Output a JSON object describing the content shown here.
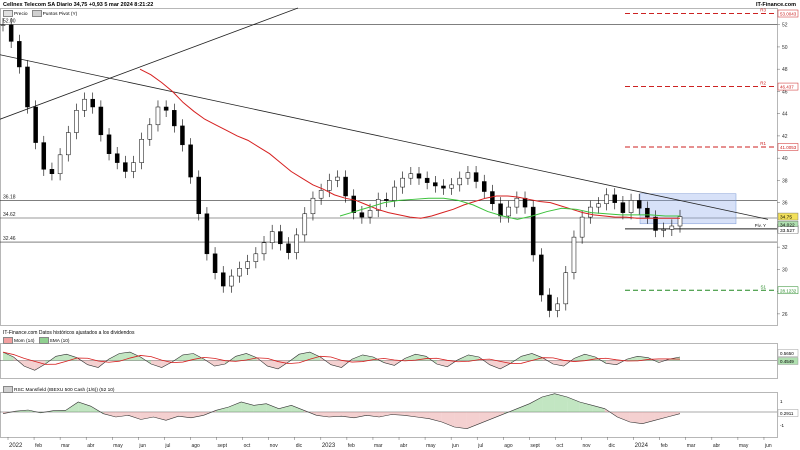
{
  "header": {
    "title": "Cellnex Telecom SA Diario 34,75 +0,93 5 mar 2024 8:21:22",
    "brand": "IT-Finance.com"
  },
  "legend_main": [
    {
      "label": "Precio",
      "color": "#e0e0e0"
    },
    {
      "label": "Puntos Pivot (Y)",
      "color": "#d0d0d0"
    }
  ],
  "panel2": {
    "caption": "IT-Finance.com Datos históricos ajustados a los dividendos",
    "legend": [
      {
        "label": "Mom (14)",
        "color": "#f2a0a0"
      },
      {
        "label": "SMA (10)",
        "color": "#90d090"
      }
    ]
  },
  "panel3": {
    "legend": [
      {
        "label": "RSC Mansfield (IBEXU 500 Cash (1/6)) (52 10)",
        "color": "#d0d0d0"
      }
    ]
  },
  "chart_data": [
    {
      "type": "candlestick",
      "x_labels": [
        "2022",
        "feb",
        "mar",
        "abr",
        "may",
        "jun",
        "jul",
        "ago",
        "sept",
        "oct",
        "nov",
        "dic",
        "2023",
        "feb",
        "mar",
        "abr",
        "may",
        "jun",
        "jul",
        "ago",
        "sept",
        "oct",
        "nov",
        "dic",
        "2024",
        "feb",
        "mar",
        "abr",
        "may",
        "jun"
      ],
      "y_ticks": [
        26,
        28,
        30,
        32,
        34,
        36,
        38,
        40,
        42,
        44,
        46,
        48,
        50,
        52
      ],
      "ylim": [
        25,
        53.5
      ],
      "close_series": [
        52.0,
        50.5,
        48.2,
        44.6,
        41.4,
        39.0,
        38.6,
        40.3,
        42.3,
        44.3,
        45.3,
        44.6,
        42.1,
        40.4,
        39.6,
        38.8,
        39.6,
        41.7,
        43.0,
        44.6,
        44.3,
        42.9,
        41.2,
        38.3,
        35.0,
        31.4,
        29.7,
        28.5,
        29.4,
        30.1,
        30.7,
        31.4,
        32.4,
        33.4,
        32.3,
        31.5,
        33.1,
        35.0,
        36.4,
        37.1,
        38.0,
        38.3,
        36.6,
        35.1,
        34.7,
        35.3,
        36.3,
        36.2,
        37.4,
        38.2,
        38.6,
        38.2,
        37.8,
        37.5,
        37.3,
        37.6,
        38.2,
        38.7,
        37.9,
        37.0,
        35.9,
        34.8,
        35.6,
        36.4,
        35.6,
        31.3,
        27.7,
        26.3,
        26.9,
        29.7,
        32.9,
        34.7,
        35.6,
        35.9,
        36.7,
        36.0,
        35.1,
        36.2,
        35.5,
        34.7,
        33.5,
        33.6,
        33.9,
        34.75
      ],
      "moving_average_red": [
        48,
        47.5,
        46.8,
        46,
        45,
        44.2,
        43.5,
        43,
        42.5,
        42,
        41.6,
        41,
        40.4,
        39.6,
        38.8,
        38.2,
        37.6,
        37.2,
        36.7,
        36.4,
        36.2,
        35.8,
        35.4,
        35.1,
        34.9,
        34.7,
        34.6,
        34.8,
        35.1,
        35.4,
        35.8,
        36.1,
        36.4,
        36.6,
        36.6,
        36.5,
        36.3,
        36.1,
        36.0,
        35.7,
        35.4,
        35.1,
        34.9,
        34.8,
        34.7,
        34.7,
        34.6,
        34.6,
        34.6,
        34.6,
        34.6
      ],
      "moving_average_green": [
        34.8,
        35.2,
        35.6,
        36.0,
        36.2,
        36.3,
        36.4,
        36.4,
        36.2,
        35.8,
        35.2,
        34.8,
        34.5,
        34.8,
        35.2,
        35.5,
        35.4,
        35.1,
        35.0,
        34.9,
        34.9,
        34.9,
        34.8,
        34.8
      ],
      "levels": [
        {
          "label": "52.00",
          "value": 52.0,
          "style": "solid"
        },
        {
          "label": "36.18",
          "value": 36.18,
          "style": "solid"
        },
        {
          "label": "34.62",
          "value": 34.62,
          "style": "solid"
        },
        {
          "label": "32.46",
          "value": 32.46,
          "style": "solid"
        }
      ],
      "pivots": [
        {
          "label": "R3",
          "value": "53.0043",
          "color": "#cc2222"
        },
        {
          "label": "R2",
          "value": "46.437",
          "color": "#cc2222"
        },
        {
          "label": "R1",
          "value": "41.0053",
          "color": "#cc2222"
        },
        {
          "label": "Piv. Y",
          "value": "33.637",
          "color": "#222222"
        },
        {
          "label": "S1",
          "value": "28.1232",
          "color": "#228822"
        }
      ],
      "price_tags": [
        {
          "value": "34.75",
          "color": "#f2e05a"
        },
        {
          "value": "34.022",
          "color": "#b0e0b0"
        },
        {
          "value": "33.527",
          "color": "#ffffff"
        }
      ]
    },
    {
      "type": "area",
      "name": "Mom (14)",
      "ylim": [
        -0.25,
        0.25
      ],
      "y_tick_labels": [
        "0.5650",
        "0.4549"
      ],
      "values": [
        0.12,
        0.05,
        -0.08,
        -0.14,
        -0.05,
        0.06,
        0.09,
        0.04,
        -0.06,
        -0.1,
        0.02,
        0.1,
        0.12,
        0.05,
        -0.05,
        -0.1,
        -0.02,
        0.08,
        0.1,
        0.02,
        -0.08,
        -0.05,
        0.06,
        0.1,
        0.04,
        -0.08,
        -0.12,
        -0.02,
        0.09,
        0.12,
        0.05,
        -0.06,
        -0.1,
        0.02,
        0.08,
        0.05,
        -0.03,
        -0.07,
        0.03,
        0.09,
        0.06,
        -0.05,
        -0.09,
        0.01,
        0.08,
        0.05,
        -0.06,
        -0.12,
        -0.04,
        0.06,
        0.1,
        0.04,
        -0.05,
        -0.08,
        0.03,
        0.09,
        0.05,
        -0.04,
        -0.06,
        0.02,
        0.06,
        0.04,
        -0.03,
        0.02,
        0.05
      ]
    },
    {
      "type": "area",
      "name": "RSC Mansfield",
      "ylim": [
        -1.5,
        1.2
      ],
      "y_tick_labels": [
        "1",
        "0.2911",
        "-1"
      ],
      "values": [
        -0.1,
        0.05,
        0.12,
        -0.05,
        0.08,
        0.1,
        0.6,
        0.35,
        -0.1,
        -0.3,
        -0.2,
        -0.45,
        -0.3,
        -0.5,
        -0.25,
        -0.35,
        -0.2,
        0.1,
        0.3,
        0.6,
        0.4,
        0.5,
        0.2,
        0.4,
        0.1,
        -0.2,
        -0.3,
        -0.25,
        -0.35,
        -0.2,
        -0.3,
        -0.15,
        -0.2,
        -0.3,
        -0.4,
        -0.6,
        -0.9,
        -1.0,
        -0.7,
        -0.4,
        -0.1,
        0.2,
        0.5,
        0.9,
        1.1,
        0.9,
        0.6,
        0.4,
        0.2,
        -0.3,
        -0.6,
        -0.7,
        -0.5,
        -0.3,
        -0.1
      ]
    }
  ]
}
